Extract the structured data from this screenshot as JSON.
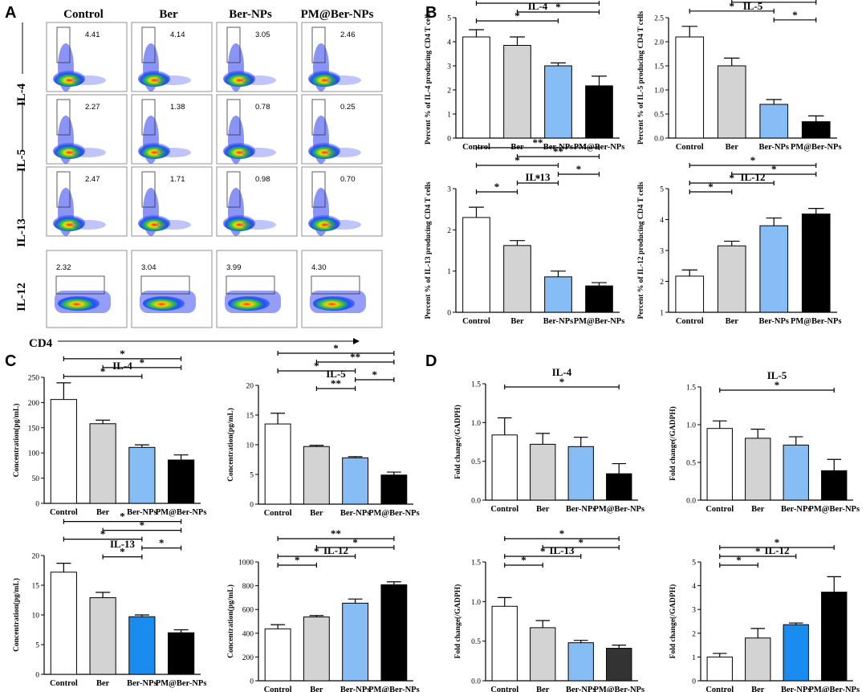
{
  "panel_labels": {
    "A": "A",
    "B": "B",
    "C": "C",
    "D": "D"
  },
  "flow": {
    "columns": [
      "Control",
      "Ber",
      "Ber-NPs",
      "PM@Ber-NPs"
    ],
    "rows": [
      {
        "label": "IL-4",
        "values": [
          "4.41",
          "4.14",
          "3.05",
          "2.46"
        ]
      },
      {
        "label": "IL-5",
        "values": [
          "2.27",
          "1.38",
          "0.78",
          "0.25"
        ]
      },
      {
        "label": "IL-13",
        "values": [
          "2.47",
          "1.71",
          "0.98",
          "0.70"
        ]
      },
      {
        "label": "IL-12",
        "values": [
          "2.32",
          "3.04",
          "3.99",
          "4.30"
        ]
      }
    ],
    "xaxis_label": "CD4"
  },
  "chart_data": [
    {
      "id": "B1",
      "panel": "B",
      "type": "bar",
      "title": "IL-4",
      "categories": [
        "Control",
        "Ber",
        "Ber-NPs",
        "PM@Ber-NPs"
      ],
      "values": [
        4.2,
        3.85,
        3.0,
        2.17
      ],
      "errors": [
        0.3,
        0.35,
        0.12,
        0.4
      ],
      "ylabel": "Percent % of IL-4 producing CD4 T cells",
      "ylim": [
        0,
        5
      ],
      "yticks": [
        0,
        1,
        2,
        3,
        4,
        5
      ],
      "ytick_labels": [
        "0",
        "1",
        "2",
        "3",
        "4",
        "5"
      ],
      "colors": [
        "#ffffff",
        "#d3d3d3",
        "#87bdf5",
        "#000000"
      ],
      "significance": [
        {
          "from": 0,
          "to": 3,
          "label": "*"
        },
        {
          "from": 0,
          "to": 2,
          "label": "*"
        },
        {
          "from": 1,
          "to": 3,
          "label": "*"
        }
      ]
    },
    {
      "id": "B2",
      "panel": "B",
      "type": "bar",
      "title": "IL-5",
      "categories": [
        "Control",
        "Ber",
        "Ber-NPs",
        "PM@Ber-NPs"
      ],
      "values": [
        2.1,
        1.5,
        0.7,
        0.34
      ],
      "errors": [
        0.22,
        0.16,
        0.1,
        0.12
      ],
      "ylabel": "Percent % of IL-5 producing CD4 T cells",
      "ylim": [
        0,
        2.5
      ],
      "yticks": [
        0,
        0.5,
        1,
        1.5,
        2,
        2.5
      ],
      "ytick_labels": [
        "0.0",
        "0.5",
        "1.0",
        "1.5",
        "2.0",
        "2.5"
      ],
      "colors": [
        "#ffffff",
        "#d3d3d3",
        "#87bdf5",
        "#000000"
      ],
      "significance": [
        {
          "from": 0,
          "to": 3,
          "label": "*"
        },
        {
          "from": 0,
          "to": 2,
          "label": "*"
        },
        {
          "from": 1,
          "to": 3,
          "label": "*"
        },
        {
          "from": 2,
          "to": 3,
          "label": "*"
        }
      ]
    },
    {
      "id": "B3",
      "panel": "B",
      "type": "bar",
      "title": "IL-13",
      "categories": [
        "Control",
        "Ber",
        "Ber-NPs",
        "PM@Ber-NPs"
      ],
      "values": [
        2.3,
        1.62,
        0.86,
        0.64
      ],
      "errors": [
        0.25,
        0.12,
        0.14,
        0.08
      ],
      "ylabel": "Percent % of IL-13 producing CD4 T cells",
      "ylim": [
        0,
        3
      ],
      "yticks": [
        0,
        1,
        2,
        3
      ],
      "ytick_labels": [
        "0",
        "1",
        "2",
        "3"
      ],
      "colors": [
        "#ffffff",
        "#d3d3d3",
        "#87bdf5",
        "#000000"
      ],
      "significance": [
        {
          "from": 0,
          "to": 3,
          "label": "**"
        },
        {
          "from": 0,
          "to": 2,
          "label": "*"
        },
        {
          "from": 0,
          "to": 1,
          "label": "*"
        },
        {
          "from": 1,
          "to": 3,
          "label": "**"
        },
        {
          "from": 1,
          "to": 2,
          "label": "*"
        },
        {
          "from": 2,
          "to": 3,
          "label": "*"
        }
      ]
    },
    {
      "id": "B4",
      "panel": "B",
      "type": "bar",
      "title": "IL-12",
      "categories": [
        "Control",
        "Ber",
        "Ber-NPs",
        "PM@Ber-NPs"
      ],
      "values": [
        2.17,
        3.15,
        3.8,
        4.18
      ],
      "errors": [
        0.2,
        0.15,
        0.25,
        0.18
      ],
      "ylabel": "Percent % of IL-12 producing CD4 T cells",
      "ylim": [
        1,
        5
      ],
      "yticks": [
        1,
        2,
        3,
        4,
        5
      ],
      "ytick_labels": [
        "1",
        "2",
        "3",
        "4",
        "5"
      ],
      "colors": [
        "#ffffff",
        "#d3d3d3",
        "#87bdf5",
        "#000000"
      ],
      "significance": [
        {
          "from": 0,
          "to": 3,
          "label": "*"
        },
        {
          "from": 0,
          "to": 2,
          "label": "*"
        },
        {
          "from": 0,
          "to": 1,
          "label": "*"
        },
        {
          "from": 1,
          "to": 3,
          "label": "*"
        }
      ]
    },
    {
      "id": "C1",
      "panel": "C",
      "type": "bar",
      "title": "IL-4",
      "categories": [
        "Control",
        "Ber",
        "Ber-NPs",
        "PM@Ber-NPs"
      ],
      "values": [
        206,
        158,
        111,
        86
      ],
      "errors": [
        33,
        7,
        5,
        10
      ],
      "ylabel": "Concentration(pg/mL)",
      "ylim": [
        0,
        250
      ],
      "yticks": [
        0,
        50,
        100,
        150,
        200,
        250
      ],
      "ytick_labels": [
        "0",
        "50",
        "100",
        "150",
        "200",
        "250"
      ],
      "colors": [
        "#ffffff",
        "#d3d3d3",
        "#87bdf5",
        "#000000"
      ],
      "significance": [
        {
          "from": 0,
          "to": 3,
          "label": "*"
        },
        {
          "from": 0,
          "to": 2,
          "label": "*"
        },
        {
          "from": 1,
          "to": 3,
          "label": "*"
        }
      ]
    },
    {
      "id": "C2",
      "panel": "C",
      "type": "bar",
      "title": "IL-5",
      "categories": [
        "Control",
        "Ber",
        "Ber-NPs",
        "PM@Ber-NPs"
      ],
      "values": [
        13.5,
        9.7,
        7.8,
        4.9
      ],
      "errors": [
        1.8,
        0.2,
        0.2,
        0.5
      ],
      "ylabel": "Concentration(pg/mL)",
      "ylim": [
        0,
        20
      ],
      "yticks": [
        0,
        5,
        10,
        15,
        20
      ],
      "ytick_labels": [
        "0",
        "5",
        "10",
        "15",
        "20"
      ],
      "colors": [
        "#ffffff",
        "#d3d3d3",
        "#87bdf5",
        "#000000"
      ],
      "significance": [
        {
          "from": 0,
          "to": 3,
          "label": "*"
        },
        {
          "from": 0,
          "to": 2,
          "label": "*"
        },
        {
          "from": 1,
          "to": 3,
          "label": "**"
        },
        {
          "from": 1,
          "to": 2,
          "label": "**"
        },
        {
          "from": 2,
          "to": 3,
          "label": "*"
        }
      ]
    },
    {
      "id": "C3",
      "panel": "C",
      "type": "bar",
      "title": "IL-13",
      "categories": [
        "Control",
        "Ber",
        "Ber-NPs",
        "PM@Ber-NPs"
      ],
      "values": [
        17.2,
        12.9,
        9.7,
        7.0
      ],
      "errors": [
        1.5,
        0.9,
        0.3,
        0.5
      ],
      "ylabel": "Concentration(pg/mL)",
      "ylim": [
        0,
        20
      ],
      "yticks": [
        0,
        5,
        10,
        15,
        20
      ],
      "ytick_labels": [
        "0",
        "5",
        "10",
        "15",
        "20"
      ],
      "colors": [
        "#ffffff",
        "#d3d3d3",
        "#1a8cf0",
        "#000000"
      ],
      "significance": [
        {
          "from": 0,
          "to": 3,
          "label": "*"
        },
        {
          "from": 0,
          "to": 2,
          "label": "*"
        },
        {
          "from": 1,
          "to": 3,
          "label": "*"
        },
        {
          "from": 1,
          "to": 2,
          "label": "*"
        },
        {
          "from": 2,
          "to": 3,
          "label": "*"
        }
      ]
    },
    {
      "id": "C4",
      "panel": "C",
      "type": "bar",
      "title": "IL-12",
      "categories": [
        "Control",
        "Ber",
        "Ber-NPs",
        "PM@Ber-NPs"
      ],
      "values": [
        437,
        537,
        653,
        808
      ],
      "errors": [
        35,
        12,
        35,
        25
      ],
      "ylabel": "Concentration(pg/mL)",
      "ylim": [
        0,
        1000
      ],
      "yticks": [
        0,
        200,
        400,
        600,
        800,
        1000
      ],
      "ytick_labels": [
        "0",
        "200",
        "400",
        "600",
        "800",
        "1000"
      ],
      "colors": [
        "#ffffff",
        "#d3d3d3",
        "#87bdf5",
        "#000000"
      ],
      "significance": [
        {
          "from": 0,
          "to": 3,
          "label": "**"
        },
        {
          "from": 0,
          "to": 2,
          "label": "*"
        },
        {
          "from": 0,
          "to": 1,
          "label": "*"
        },
        {
          "from": 1,
          "to": 3,
          "label": "*"
        }
      ]
    },
    {
      "id": "D1",
      "panel": "D",
      "type": "bar",
      "title": "IL-4",
      "categories": [
        "Control",
        "Ber",
        "Ber-NPs",
        "PM@Ber-NPs"
      ],
      "values": [
        0.84,
        0.72,
        0.69,
        0.34
      ],
      "errors": [
        0.22,
        0.14,
        0.12,
        0.13
      ],
      "ylabel": "Fold change(/GADPH)",
      "ylim": [
        0,
        1.5
      ],
      "yticks": [
        0,
        0.5,
        1,
        1.5
      ],
      "ytick_labels": [
        "0.0",
        "0.5",
        "1.0",
        "1.5"
      ],
      "colors": [
        "#ffffff",
        "#d3d3d3",
        "#87bdf5",
        "#000000"
      ],
      "significance": [
        {
          "from": 0,
          "to": 3,
          "label": "*"
        }
      ]
    },
    {
      "id": "D2",
      "panel": "D",
      "type": "bar",
      "title": "IL-5",
      "categories": [
        "Control",
        "Ber",
        "Ber-NPs",
        "PM@Ber-NPs"
      ],
      "values": [
        0.95,
        0.82,
        0.73,
        0.39
      ],
      "errors": [
        0.1,
        0.12,
        0.11,
        0.15
      ],
      "ylabel": "Fold change(/GADPH)",
      "ylim": [
        0,
        1.5
      ],
      "yticks": [
        0,
        0.5,
        1,
        1.5
      ],
      "ytick_labels": [
        "0.0",
        "0.5",
        "1.0",
        "1.5"
      ],
      "colors": [
        "#ffffff",
        "#d3d3d3",
        "#87bdf5",
        "#000000"
      ],
      "significance": [
        {
          "from": 0,
          "to": 3,
          "label": "*"
        }
      ]
    },
    {
      "id": "D3",
      "panel": "D",
      "type": "bar",
      "title": "IL-13",
      "categories": [
        "Control",
        "Ber",
        "Ber-NPs",
        "PM@Ber-NPs"
      ],
      "values": [
        0.94,
        0.67,
        0.48,
        0.41
      ],
      "errors": [
        0.11,
        0.09,
        0.03,
        0.04
      ],
      "ylabel": "Fold change(/GADPH)",
      "ylim": [
        0,
        1.5
      ],
      "yticks": [
        0,
        0.5,
        1,
        1.5
      ],
      "ytick_labels": [
        "0.0",
        "0.5",
        "1.0",
        "1.5"
      ],
      "colors": [
        "#ffffff",
        "#d3d3d3",
        "#87bdf5",
        "#333333"
      ],
      "significance": [
        {
          "from": 0,
          "to": 3,
          "label": "*"
        },
        {
          "from": 0,
          "to": 2,
          "label": "*"
        },
        {
          "from": 0,
          "to": 1,
          "label": "*"
        },
        {
          "from": 1,
          "to": 3,
          "label": "*"
        }
      ]
    },
    {
      "id": "D4",
      "panel": "D",
      "type": "bar",
      "title": "IL-12",
      "categories": [
        "Control",
        "Ber",
        "Ber-NPs",
        "PM@Ber-NPs"
      ],
      "values": [
        1.0,
        1.8,
        2.36,
        3.73
      ],
      "errors": [
        0.15,
        0.4,
        0.07,
        0.65
      ],
      "ylabel": "Fold change(/GADPH)",
      "ylim": [
        0,
        5
      ],
      "yticks": [
        0,
        1,
        2,
        3,
        4,
        5
      ],
      "ytick_labels": [
        "0",
        "1",
        "2",
        "3",
        "4",
        "5"
      ],
      "colors": [
        "#ffffff",
        "#d3d3d3",
        "#1a8cf0",
        "#000000"
      ],
      "significance": [
        {
          "from": 0,
          "to": 3,
          "label": "*"
        },
        {
          "from": 0,
          "to": 2,
          "label": "*"
        },
        {
          "from": 0,
          "to": 1,
          "label": "*"
        }
      ]
    }
  ]
}
